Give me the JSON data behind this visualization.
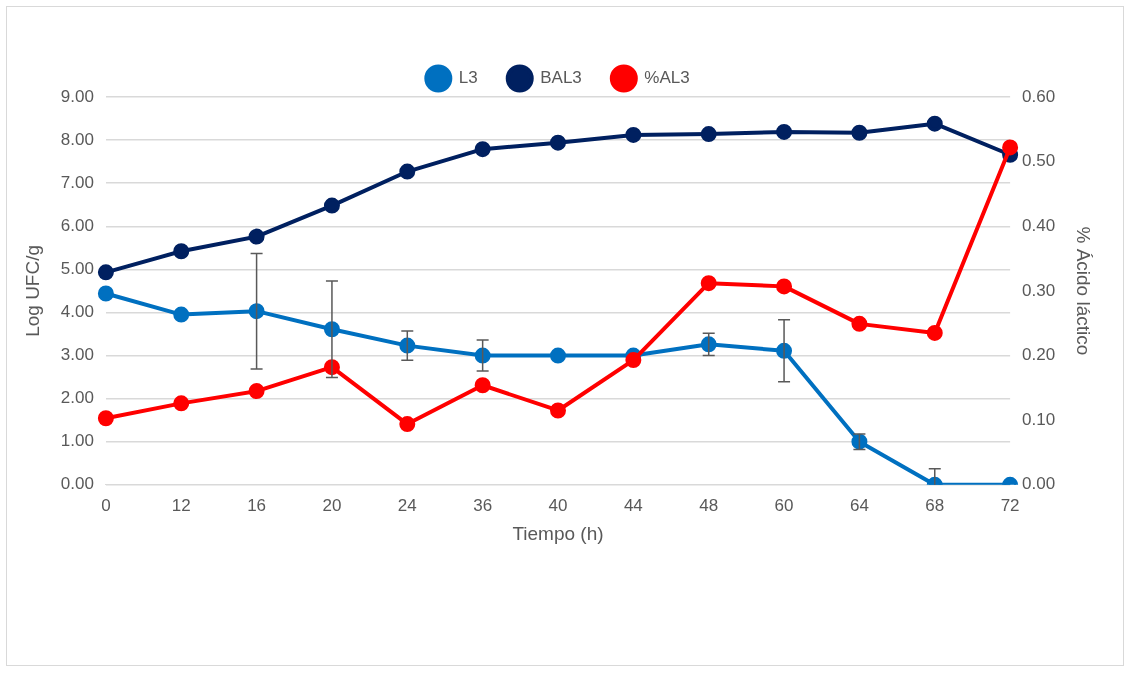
{
  "chart_data": {
    "type": "line",
    "xlabel": "Tiempo (h)",
    "ylabel": "Log UFC/g",
    "y2label": "% Ácido láctico",
    "categories": [
      "0",
      "12",
      "16",
      "20",
      "24",
      "36",
      "40",
      "44",
      "48",
      "60",
      "64",
      "68",
      "72"
    ],
    "series": [
      {
        "name": "L3",
        "color": "#0070c0",
        "values": [
          4.44,
          3.95,
          4.03,
          3.61,
          3.23,
          3.0,
          3.0,
          3.0,
          3.26,
          3.11,
          1.0,
          0.0,
          0.0
        ],
        "errors": [
          null,
          null,
          1.34,
          1.12,
          0.34,
          0.36,
          null,
          null,
          0.26,
          0.72,
          0.18,
          [
            0,
            0.37
          ],
          null
        ]
      },
      {
        "name": "BAL3",
        "color": "#002060",
        "values": [
          4.93,
          5.42,
          5.76,
          6.48,
          7.27,
          7.79,
          7.94,
          8.12,
          8.14,
          8.19,
          8.17,
          8.38,
          7.66
        ]
      },
      {
        "name": "%AL3",
        "color": "#ff0000",
        "axis": "y2",
        "values": [
          0.103,
          0.126,
          0.145,
          0.182,
          0.094,
          0.154,
          0.115,
          0.193,
          0.312,
          0.307,
          0.249,
          0.235,
          0.522
        ]
      }
    ],
    "ylim": [
      0,
      9
    ],
    "yticks": [
      {
        "value": 0,
        "label": "0.00"
      },
      {
        "value": 1,
        "label": "1.00"
      },
      {
        "value": 2,
        "label": "2.00"
      },
      {
        "value": 3,
        "label": "3.00"
      },
      {
        "value": 4,
        "label": "4.00"
      },
      {
        "value": 5,
        "label": "5.00"
      },
      {
        "value": 6,
        "label": "6.00"
      },
      {
        "value": 7,
        "label": "7.00"
      },
      {
        "value": 8,
        "label": "8.00"
      },
      {
        "value": 9,
        "label": "9.00"
      }
    ],
    "y2lim": [
      0,
      0.6
    ],
    "y2ticks": [
      {
        "value": 0,
        "label": "0.00"
      },
      {
        "value": 0.1,
        "label": "0.10"
      },
      {
        "value": 0.2,
        "label": "0.20"
      },
      {
        "value": 0.3,
        "label": "0.30"
      },
      {
        "value": 0.4,
        "label": "0.40"
      },
      {
        "value": 0.5,
        "label": "0.50"
      },
      {
        "value": 0.6,
        "label": "0.60"
      }
    ],
    "grid": "y",
    "legend": "top",
    "marker": "circle",
    "line_style": "solid"
  }
}
